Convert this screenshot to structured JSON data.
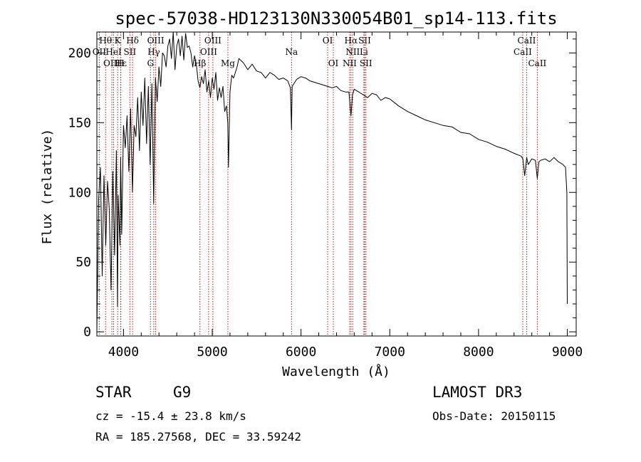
{
  "chart_data": {
    "type": "line",
    "title": "spec-57038-HD123130N330054B01_sp14-113.fits",
    "xlabel": "Wavelength (Å)",
    "ylabel": "Flux (relative)",
    "xlim": [
      3700,
      9100
    ],
    "ylim": [
      -3,
      215
    ],
    "xticks": [
      {
        "value": 4000,
        "label": "4000"
      },
      {
        "value": 5000,
        "label": "5000"
      },
      {
        "value": 6000,
        "label": "6000"
      },
      {
        "value": 7000,
        "label": "7000"
      },
      {
        "value": 8000,
        "label": "8000"
      },
      {
        "value": 9000,
        "label": "9000"
      }
    ],
    "yticks": [
      {
        "value": 0,
        "label": "0"
      },
      {
        "value": 50,
        "label": "50"
      },
      {
        "value": 100,
        "label": "100"
      },
      {
        "value": 150,
        "label": "150"
      },
      {
        "value": 200,
        "label": "200"
      }
    ],
    "series": [
      {
        "name": "spectrum",
        "x": [
          3700,
          3720,
          3740,
          3760,
          3780,
          3800,
          3820,
          3840,
          3860,
          3880,
          3900,
          3920,
          3933,
          3940,
          3960,
          3968,
          3980,
          4000,
          4020,
          4040,
          4060,
          4080,
          4101,
          4120,
          4140,
          4160,
          4180,
          4200,
          4220,
          4240,
          4260,
          4280,
          4300,
          4320,
          4340,
          4360,
          4380,
          4400,
          4420,
          4440,
          4460,
          4480,
          4500,
          4520,
          4540,
          4560,
          4580,
          4600,
          4620,
          4640,
          4660,
          4680,
          4700,
          4720,
          4740,
          4760,
          4780,
          4800,
          4820,
          4840,
          4861,
          4880,
          4900,
          4920,
          4940,
          4960,
          4980,
          5000,
          5020,
          5040,
          5060,
          5080,
          5100,
          5120,
          5140,
          5160,
          5175,
          5183,
          5200,
          5220,
          5240,
          5260,
          5280,
          5300,
          5350,
          5400,
          5450,
          5500,
          5550,
          5600,
          5650,
          5700,
          5750,
          5800,
          5850,
          5880,
          5893,
          5900,
          5920,
          5950,
          6000,
          6050,
          6100,
          6150,
          6200,
          6250,
          6300,
          6350,
          6400,
          6450,
          6500,
          6540,
          6563,
          6580,
          6600,
          6650,
          6700,
          6750,
          6800,
          6850,
          6900,
          6950,
          7000,
          7100,
          7200,
          7300,
          7400,
          7500,
          7600,
          7700,
          7800,
          7900,
          8000,
          8100,
          8200,
          8300,
          8400,
          8480,
          8500,
          8520,
          8542,
          8560,
          8600,
          8640,
          8662,
          8680,
          8700,
          8750,
          8800,
          8850,
          8900,
          8950,
          8980,
          8995,
          9000
        ],
        "y": [
          0,
          95,
          118,
          40,
          112,
          62,
          108,
          88,
          30,
          115,
          55,
          130,
          18,
          98,
          62,
          125,
          70,
          148,
          132,
          155,
          115,
          160,
          100,
          148,
          140,
          168,
          130,
          172,
          148,
          182,
          135,
          176,
          120,
          178,
          92,
          182,
          165,
          190,
          176,
          200,
          198,
          190,
          205,
          210,
          196,
          215,
          188,
          205,
          210,
          198,
          212,
          195,
          214,
          204,
          205,
          200,
          190,
          198,
          192,
          180,
          175,
          183,
          178,
          188,
          172,
          180,
          168,
          182,
          174,
          186,
          166,
          175,
          168,
          176,
          158,
          162,
          150,
          118,
          172,
          184,
          182,
          186,
          190,
          196,
          193,
          188,
          192,
          187,
          186,
          182,
          186,
          184,
          181,
          182,
          180,
          175,
          145,
          176,
          178,
          181,
          183,
          182,
          180,
          179,
          178,
          177,
          176,
          175,
          176,
          173,
          172,
          172,
          155,
          170,
          174,
          172,
          170,
          168,
          171,
          170,
          166,
          168,
          167,
          162,
          158,
          155,
          152,
          150,
          148,
          147,
          143,
          142,
          138,
          136,
          133,
          131,
          128,
          126,
          124,
          112,
          125,
          120,
          124,
          123,
          110,
          122,
          123,
          124,
          122,
          125,
          122,
          120,
          118,
          100,
          20
        ]
      }
    ],
    "lines": [
      {
        "name": "Hθ",
        "x": 3798,
        "row": 0
      },
      {
        "name": "OII",
        "x": 3727,
        "row": 1
      },
      {
        "name": "OIII",
        "x": 3869,
        "row": 2
      },
      {
        "name": "HeI",
        "x": 3889,
        "row": 1
      },
      {
        "name": "K",
        "x": 3934,
        "row": 0
      },
      {
        "name": "H",
        "x": 3968,
        "row": 2
      },
      {
        "name": "Hε",
        "x": 3970,
        "row": 2
      },
      {
        "name": "SII",
        "x": 4072,
        "row": 1
      },
      {
        "name": "Hδ",
        "x": 4102,
        "row": 0
      },
      {
        "name": "G",
        "x": 4304,
        "row": 2
      },
      {
        "name": "Hγ",
        "x": 4341,
        "row": 1
      },
      {
        "name": "OIII",
        "x": 4363,
        "row": 0
      },
      {
        "name": "Hβ",
        "x": 4861,
        "row": 2
      },
      {
        "name": "OIII",
        "x": 4959,
        "row": 1
      },
      {
        "name": "OIII",
        "x": 5007,
        "row": 0
      },
      {
        "name": "Mg",
        "x": 5176,
        "row": 2
      },
      {
        "name": "Na",
        "x": 5893,
        "row": 1
      },
      {
        "name": "OI",
        "x": 6300,
        "row": 0
      },
      {
        "name": "OI",
        "x": 6364,
        "row": 2
      },
      {
        "name": "NII",
        "x": 6548,
        "row": 2
      },
      {
        "name": "Hα",
        "x": 6563,
        "row": 0
      },
      {
        "name": "NII",
        "x": 6583,
        "row": 1
      },
      {
        "name": "Li",
        "x": 6708,
        "row": 1
      },
      {
        "name": "SII",
        "x": 6717,
        "row": 0
      },
      {
        "name": "SII",
        "x": 6731,
        "row": 2
      },
      {
        "name": "CaII",
        "x": 8498,
        "row": 1
      },
      {
        "name": "CaII",
        "x": 8542,
        "row": 0
      },
      {
        "name": "CaII",
        "x": 8662,
        "row": 2
      }
    ]
  },
  "info": {
    "class": "STAR",
    "subclass": "G9",
    "cz": "cz = -15.4 ± 23.8 km/s",
    "radec": "RA = 185.27568, DEC =  33.59242",
    "survey": "LAMOST DR3",
    "obsdate": "Obs-Date: 20150115"
  },
  "colors": {
    "line_marker": "#b01818",
    "spectrum": "#000000"
  }
}
